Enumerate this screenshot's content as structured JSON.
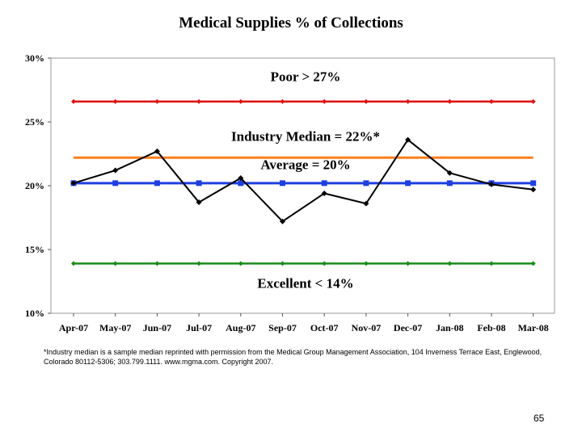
{
  "chart_data": {
    "type": "line",
    "title": "Medical Supplies % of Collections",
    "categories": [
      "Apr-07",
      "May-07",
      "Jun-07",
      "Jul-07",
      "Aug-07",
      "Sep-07",
      "Oct-07",
      "Nov-07",
      "Dec-07",
      "Jan-08",
      "Feb-08",
      "Mar-08"
    ],
    "ylim": [
      10,
      30
    ],
    "yticks": [
      10,
      15,
      20,
      25,
      30
    ],
    "ytick_labels": [
      "10%",
      "15%",
      "20%",
      "25%",
      "30%"
    ],
    "grid": false,
    "legend": "none",
    "series": [
      {
        "values": [
          20.2,
          21.2,
          22.7,
          18.7,
          20.6,
          17.2,
          19.4,
          18.6,
          23.6,
          21.0,
          20.1,
          19.7
        ],
        "color": "#000000"
      },
      {
        "values": [
          26.6,
          26.6,
          26.6,
          26.6,
          26.6,
          26.6,
          26.6,
          26.6,
          26.6,
          26.6,
          26.6,
          26.6
        ],
        "color": "#e01010"
      },
      {
        "values": [
          22.2,
          22.2,
          22.2,
          22.2,
          22.2,
          22.2,
          22.2,
          22.2,
          22.2,
          22.2,
          22.2,
          22.2
        ],
        "color": "#ff7f1a"
      },
      {
        "values": [
          20.2,
          20.2,
          20.2,
          20.2,
          20.2,
          20.2,
          20.2,
          20.2,
          20.2,
          20.2,
          20.2,
          20.2
        ],
        "color": "#1f3fe0"
      },
      {
        "values": [
          13.9,
          13.9,
          13.9,
          13.9,
          13.9,
          13.9,
          13.9,
          13.9,
          13.9,
          13.9,
          13.9,
          13.9
        ],
        "color": "#1a8c1a"
      }
    ],
    "annotations": [
      {
        "text": "Poor > 27%",
        "y": 28.2
      },
      {
        "text": "Industry Median = 22%*",
        "y": 23.5
      },
      {
        "text": "Average = 20%",
        "y": 21.3
      },
      {
        "text": "Excellent < 14%",
        "y": 12.0
      }
    ]
  },
  "footnote": "*Industry median is a sample median reprinted with permission from the Medical Group Management Association, 104 Inverness Terrace East, Englewood, Colorado 80112-5306; 303.799.1111. www.mgma.com. Copyright 2007.",
  "page_number": "65"
}
